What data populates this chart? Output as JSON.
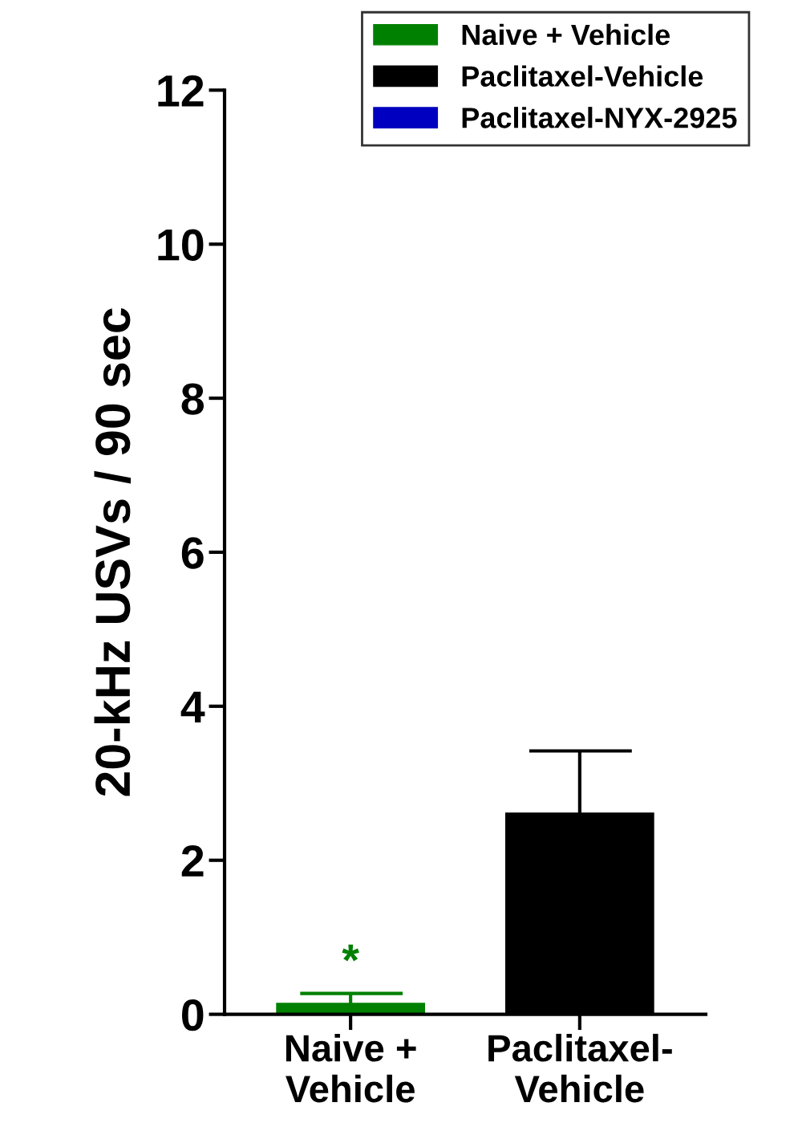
{
  "chart_data": {
    "type": "bar",
    "ylabel": "20-kHz USVs / 90 sec",
    "categories": [
      "Naive +\nVehicle",
      "Paclitaxel-\nVehicle"
    ],
    "series": [
      {
        "name": "Naive + Vehicle",
        "color": "#008000",
        "values": [
          0.15,
          null
        ],
        "errors": [
          [
            0.15,
            0.27
          ],
          null
        ]
      },
      {
        "name": "Paclitaxel-Vehicle",
        "color": "#000000",
        "values": [
          null,
          2.62
        ],
        "errors": [
          null,
          [
            2.62,
            3.42
          ]
        ]
      },
      {
        "name": "Paclitaxel-NYX-2925",
        "color": "#0000c0",
        "values": [
          null,
          null
        ]
      }
    ],
    "annotations": [
      "*"
    ],
    "ylim": [
      0,
      12
    ],
    "yticks": [
      0,
      2,
      4,
      6,
      8,
      10,
      12
    ],
    "grid": false,
    "legend": "top right"
  }
}
